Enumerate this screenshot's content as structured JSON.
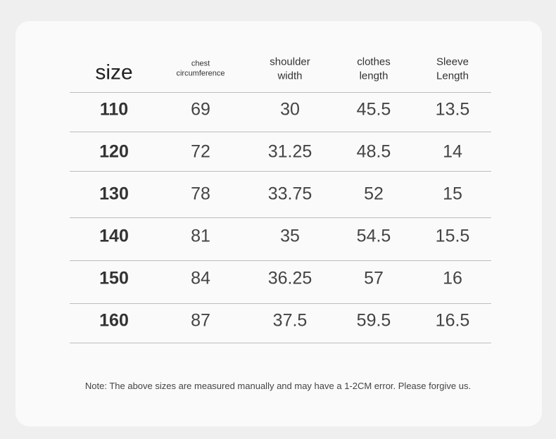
{
  "table": {
    "columns": [
      [
        "size"
      ],
      [
        "chest",
        "circumference"
      ],
      [
        "shoulder",
        "width"
      ],
      [
        "clothes",
        "length"
      ],
      [
        "Sleeve",
        "Length"
      ]
    ],
    "rows": [
      [
        "110",
        "69",
        "30",
        "45.5",
        "13.5"
      ],
      [
        "120",
        "72",
        "31.25",
        "48.5",
        "14"
      ],
      [
        "130",
        "78",
        "33.75",
        "52",
        "15"
      ],
      [
        "140",
        "81",
        "35",
        "54.5",
        "15.5"
      ],
      [
        "150",
        "84",
        "36.25",
        "57",
        "16"
      ],
      [
        "160",
        "87",
        "37.5",
        "59.5",
        "16.5"
      ]
    ]
  },
  "note": "Note: The above sizes are measured manually and may have a 1-2CM error. Please forgive us."
}
